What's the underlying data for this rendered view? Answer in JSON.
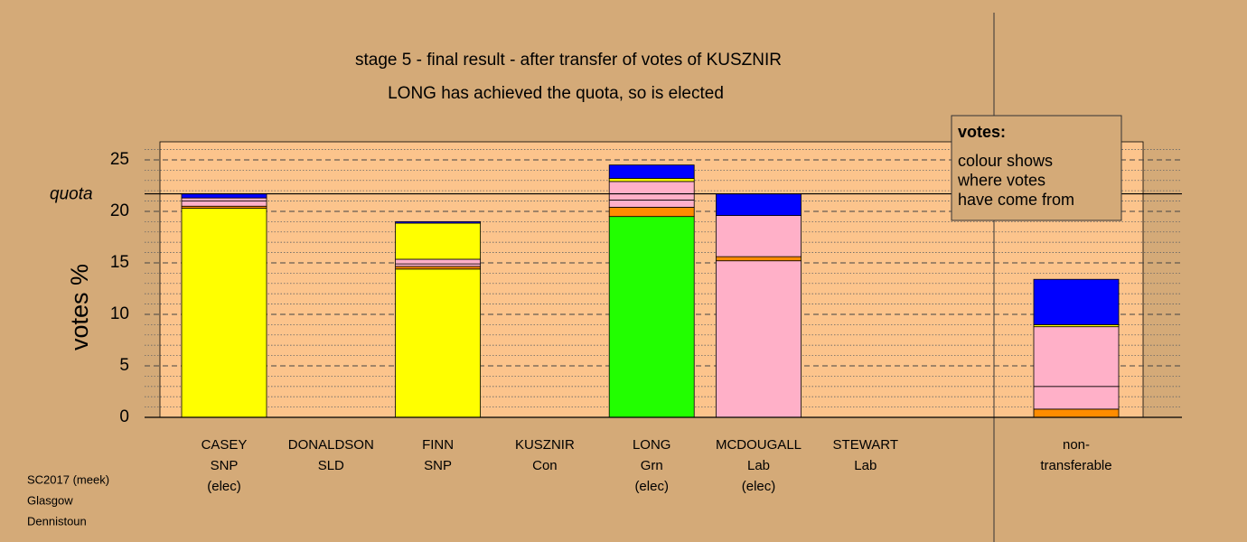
{
  "chart_data": {
    "type": "stacked_bar",
    "title": "stage 5 - final result - after transfer of votes of KUSZNIR",
    "subtitle": "LONG has achieved the quota, so is elected",
    "y_label": "votes %",
    "categories": [
      [
        "CASEY",
        "SNP",
        "(elec)"
      ],
      [
        "DONALDSON",
        "SLD"
      ],
      [
        "FINN",
        "SNP"
      ],
      [
        "KUSZNIR",
        "Con"
      ],
      [
        "LONG",
        "Grn",
        "(elec)"
      ],
      [
        "MCDOUGALL",
        "Lab",
        "(elec)"
      ],
      [
        "STEWART",
        "Lab"
      ],
      [
        "non-",
        "transferable"
      ]
    ],
    "series": [
      {
        "color": "#22ff00",
        "values": [
          0,
          0,
          0,
          0,
          19.5,
          0,
          0,
          0
        ]
      },
      {
        "color": "#ffff00",
        "values": [
          20.3,
          0,
          14.4,
          0,
          0,
          0,
          0,
          0
        ]
      },
      {
        "color": "#ffb0c8",
        "values": [
          0,
          0,
          0,
          0,
          0,
          15.2,
          0,
          0
        ]
      },
      {
        "color": "#ff8c00",
        "values": [
          0.2,
          0,
          0.25,
          0,
          0.9,
          0.4,
          0,
          0.8
        ]
      },
      {
        "color": "#ffb0c8",
        "values": [
          0.5,
          0,
          0.25,
          0,
          0.7,
          4.0,
          0,
          2.2
        ]
      },
      {
        "color": "#ffb0c8",
        "values": [
          0.3,
          0,
          0.45,
          0,
          1.8,
          0,
          0,
          5.8
        ]
      },
      {
        "color": "#ffff00",
        "values": [
          0,
          0,
          3.5,
          0,
          0.3,
          0,
          0,
          0.2
        ]
      },
      {
        "color": "#0000ff",
        "values": [
          0.4,
          0,
          0.15,
          0,
          1.3,
          2.1,
          0,
          4.4
        ]
      }
    ],
    "quota": {
      "value": 21.7,
      "label": "quota"
    },
    "ylim": [
      0,
      26.75
    ],
    "yticks": [
      0,
      5,
      10,
      15,
      20,
      25
    ],
    "minor_yticks": [
      1,
      2,
      3,
      4,
      6,
      7,
      8,
      9,
      11,
      12,
      13,
      14,
      16,
      17,
      18,
      19,
      21,
      22,
      23,
      24,
      26
    ],
    "legend": {
      "title": "votes:",
      "lines": [
        "colour shows",
        "where votes",
        "have come from"
      ]
    },
    "footer": [
      "SC2017 (meek)",
      "Glasgow",
      "Dennistoun"
    ]
  }
}
